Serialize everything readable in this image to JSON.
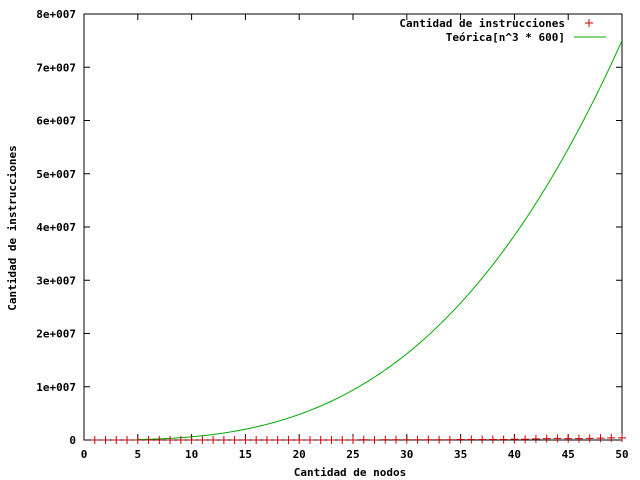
{
  "chart_data": {
    "type": "line",
    "xlabel": "Cantidad de nodos",
    "ylabel": "Cantidad de instrucciones",
    "xlim": [
      0,
      50
    ],
    "ylim": [
      0,
      80000000
    ],
    "x_ticks": [
      0,
      5,
      10,
      15,
      20,
      25,
      30,
      35,
      40,
      45,
      50
    ],
    "x_tick_labels": [
      "0",
      "5",
      "10",
      "15",
      "20",
      "25",
      "30",
      "35",
      "40",
      "45",
      "50"
    ],
    "y_ticks": [
      0,
      10000000,
      20000000,
      30000000,
      40000000,
      50000000,
      60000000,
      70000000,
      80000000
    ],
    "y_tick_labels": [
      "0",
      "1e+007",
      "2e+007",
      "3e+007",
      "4e+007",
      "5e+007",
      "6e+007",
      "7e+007",
      "8e+007"
    ],
    "grid": false,
    "legend_position": "top-right",
    "series": [
      {
        "name": "Cantidad de instrucciones",
        "kind": "points",
        "marker": "plus",
        "color": "#cc0000",
        "x": [
          1,
          2,
          3,
          4,
          5,
          6,
          7,
          8,
          9,
          10,
          11,
          12,
          13,
          14,
          15,
          16,
          17,
          18,
          19,
          20,
          21,
          22,
          23,
          24,
          25,
          26,
          27,
          28,
          29,
          30,
          31,
          32,
          33,
          34,
          35,
          36,
          37,
          38,
          39,
          40,
          41,
          42,
          43,
          44,
          45,
          46,
          47,
          48,
          49,
          50
        ],
        "y": [
          0,
          0,
          0,
          0,
          0,
          0,
          0,
          0,
          0,
          0,
          0,
          0,
          0,
          0,
          0,
          0,
          0,
          0,
          0,
          0,
          0,
          0,
          0,
          0,
          0,
          50000,
          0,
          50000,
          50000,
          50000,
          50000,
          50000,
          50000,
          50000,
          100000,
          100000,
          100000,
          100000,
          100000,
          150000,
          150000,
          200000,
          250000,
          300000,
          250000,
          250000,
          300000,
          350000,
          400000,
          400000
        ]
      },
      {
        "name": "Teórica[n^3 * 600]",
        "kind": "line",
        "color": "#00aa00",
        "formula": "600 * n^3",
        "x_start": 5,
        "x_end": 50
      }
    ]
  }
}
